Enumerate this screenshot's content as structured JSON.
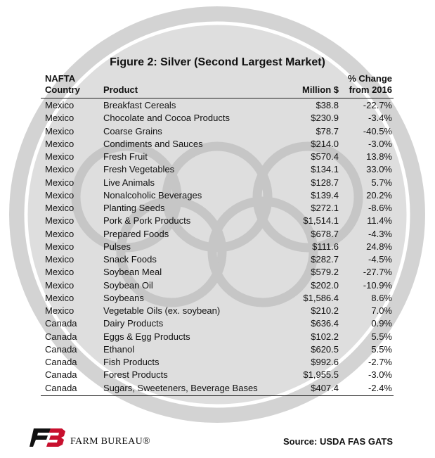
{
  "title": "Figure 2: Silver (Second Largest Market)",
  "headers": {
    "country_line1": "NAFTA",
    "country_line2": "Country",
    "product": "Product",
    "value": "Million $",
    "change_line1": "% Change",
    "change_line2": "from 2016"
  },
  "rows": [
    {
      "country": "Mexico",
      "product": "Breakfast Cereals",
      "value": "$38.8",
      "change": "-22.7%"
    },
    {
      "country": "Mexico",
      "product": "Chocolate and Cocoa Products",
      "value": "$230.9",
      "change": "-3.4%"
    },
    {
      "country": "Mexico",
      "product": "Coarse Grains",
      "value": "$78.7",
      "change": "-40.5%"
    },
    {
      "country": "Mexico",
      "product": "Condiments and Sauces",
      "value": "$214.0",
      "change": "-3.0%"
    },
    {
      "country": "Mexico",
      "product": "Fresh Fruit",
      "value": "$570.4",
      "change": "13.8%"
    },
    {
      "country": "Mexico",
      "product": "Fresh Vegetables",
      "value": "$134.1",
      "change": "33.0%"
    },
    {
      "country": "Mexico",
      "product": "Live Animals",
      "value": "$128.7",
      "change": "5.7%"
    },
    {
      "country": "Mexico",
      "product": "Nonalcoholic Beverages",
      "value": "$139.4",
      "change": "20.2%"
    },
    {
      "country": "Mexico",
      "product": "Planting Seeds",
      "value": "$272.1",
      "change": "-8.6%"
    },
    {
      "country": "Mexico",
      "product": "Pork & Pork Products",
      "value": "$1,514.1",
      "change": "11.4%"
    },
    {
      "country": "Mexico",
      "product": "Prepared Foods",
      "value": "$678.7",
      "change": "-4.3%"
    },
    {
      "country": "Mexico",
      "product": "Pulses",
      "value": "$111.6",
      "change": "24.8%"
    },
    {
      "country": "Mexico",
      "product": "Snack Foods",
      "value": "$282.7",
      "change": "-4.5%"
    },
    {
      "country": "Mexico",
      "product": "Soybean Meal",
      "value": "$579.2",
      "change": "-27.7%"
    },
    {
      "country": "Mexico",
      "product": "Soybean Oil",
      "value": "$202.0",
      "change": "-10.9%"
    },
    {
      "country": "Mexico",
      "product": "Soybeans",
      "value": "$1,586.4",
      "change": "8.6%"
    },
    {
      "country": "Mexico",
      "product": "Vegetable Oils (ex. soybean)",
      "value": "$210.2",
      "change": "7.0%"
    },
    {
      "country": "Canada",
      "product": "Dairy Products",
      "value": "$636.4",
      "change": "0.9%"
    },
    {
      "country": "Canada",
      "product": "Eggs & Egg Products",
      "value": "$102.2",
      "change": "5.5%"
    },
    {
      "country": "Canada",
      "product": "Ethanol",
      "value": "$620.5",
      "change": "5.5%"
    },
    {
      "country": "Canada",
      "product": "Fish Products",
      "value": "$992.6",
      "change": "-2.7%"
    },
    {
      "country": "Canada",
      "product": "Forest Products",
      "value": "$1,955.5",
      "change": "-3.0%"
    },
    {
      "country": "Canada",
      "product": "Sugars, Sweeteners, Beverage Bases",
      "value": "$407.4",
      "change": "-2.4%"
    }
  ],
  "footer": {
    "brand": "FARM BUREAU®",
    "source": "Source: USDA FAS GATS"
  },
  "colors": {
    "medal_outer": "#d3d3d3",
    "medal_inner": "#dcdcdc",
    "ring": "#c4c4c4",
    "logo_red": "#c8102e",
    "logo_black": "#111111"
  }
}
